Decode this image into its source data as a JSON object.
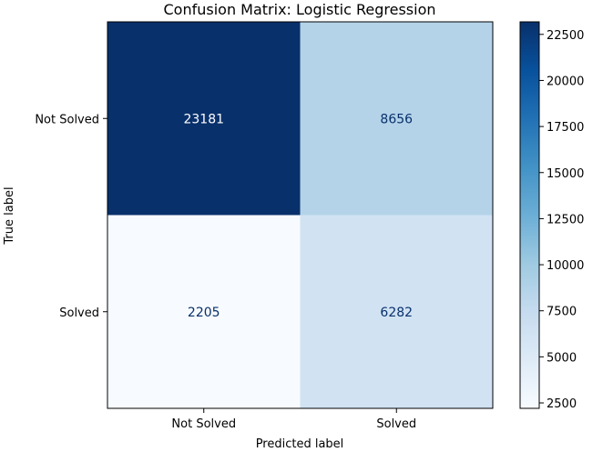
{
  "chart_data": {
    "type": "heatmap",
    "title": "Confusion Matrix: Logistic Regression",
    "xlabel": "Predicted label",
    "ylabel": "True label",
    "x_categories": [
      "Not Solved",
      "Solved"
    ],
    "y_categories": [
      "Not Solved",
      "Solved"
    ],
    "values": [
      [
        23181,
        8656
      ],
      [
        2205,
        6282
      ]
    ],
    "colormap": "Blues",
    "colorbar": {
      "min": 2205,
      "max": 23181,
      "ticks": [
        2500,
        5000,
        7500,
        10000,
        12500,
        15000,
        17500,
        20000,
        22500
      ]
    },
    "grid": false
  }
}
